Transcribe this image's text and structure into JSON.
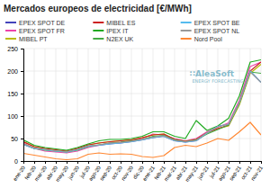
{
  "chart_data": {
    "type": "line",
    "title": "Mercados europeos de electricidad [€/MWh]",
    "categories": [
      "ene-20",
      "feb-20",
      "mar-20",
      "abr-20",
      "may-20",
      "jun-20",
      "jul-20",
      "ago-20",
      "sep-20",
      "oct-20",
      "nov-20",
      "dic-20",
      "ene-21",
      "feb-21",
      "mar-21",
      "abr-21",
      "may-21",
      "jun-21",
      "jul-21",
      "ago-21",
      "sep-21",
      "oct-21",
      "nov-21"
    ],
    "series": [
      {
        "name": "EPEX SPOT DE",
        "color": "#4444bb",
        "values": [
          37,
          28,
          25,
          22,
          20,
          25,
          33,
          35,
          38,
          40,
          43,
          47,
          52,
          55,
          45,
          42,
          45,
          62,
          77,
          82,
          130,
          200,
          175
        ]
      },
      {
        "name": "EPEX SPOT FR",
        "color": "#ee44aa",
        "values": [
          40,
          28,
          22,
          20,
          18,
          22,
          30,
          35,
          40,
          42,
          45,
          50,
          60,
          58,
          50,
          45,
          50,
          65,
          75,
          85,
          135,
          210,
          220
        ]
      },
      {
        "name": "MIBEL PT",
        "color": "#bbbb00",
        "values": [
          43,
          32,
          28,
          25,
          22,
          28,
          36,
          40,
          43,
          45,
          47,
          52,
          58,
          60,
          48,
          44,
          48,
          62,
          72,
          78,
          125,
          195,
          215
        ]
      },
      {
        "name": "MIBEL ES",
        "color": "#cc2222",
        "values": [
          43,
          32,
          28,
          25,
          22,
          28,
          36,
          40,
          43,
          45,
          47,
          52,
          58,
          60,
          48,
          44,
          48,
          63,
          72,
          80,
          130,
          200,
          220
        ]
      },
      {
        "name": "IPEX IT",
        "color": "#22aa22",
        "values": [
          47,
          35,
          30,
          27,
          24,
          30,
          38,
          45,
          48,
          48,
          50,
          55,
          65,
          65,
          55,
          50,
          90,
          68,
          78,
          95,
          145,
          220,
          225
        ]
      },
      {
        "name": "N2EX UK",
        "color": "#44aa44",
        "values": [
          38,
          28,
          24,
          22,
          20,
          24,
          32,
          36,
          40,
          42,
          45,
          48,
          55,
          57,
          47,
          43,
          47,
          60,
          70,
          80,
          128,
          198,
          195
        ]
      },
      {
        "name": "EPEX SPOT BE",
        "color": "#55bbee",
        "values": [
          37,
          28,
          25,
          22,
          20,
          25,
          33,
          35,
          38,
          40,
          43,
          47,
          52,
          55,
          45,
          42,
          45,
          62,
          77,
          82,
          130,
          200,
          175
        ]
      },
      {
        "name": "EPEX SPOT NL",
        "color": "#999999",
        "values": [
          38,
          29,
          26,
          23,
          21,
          26,
          34,
          36,
          40,
          41,
          44,
          48,
          53,
          56,
          46,
          43,
          46,
          63,
          76,
          82,
          130,
          198,
          175
        ]
      },
      {
        "name": "Nord Pool",
        "color": "#ff8833",
        "values": [
          17,
          13,
          9,
          5,
          3,
          5,
          15,
          18,
          15,
          16,
          15,
          10,
          8,
          12,
          30,
          35,
          32,
          40,
          50,
          46,
          65,
          86,
          58
        ]
      }
    ],
    "ylim": [
      0,
      250
    ],
    "yticks": [
      0,
      50,
      100,
      150,
      200,
      250
    ],
    "grid": true,
    "legend": "top",
    "annotations": [
      {
        "text": "∷AleaSoft",
        "color": "#88bbcc"
      },
      {
        "text": "ENERGY FORECASTING",
        "color": "#88bbcc"
      }
    ]
  }
}
